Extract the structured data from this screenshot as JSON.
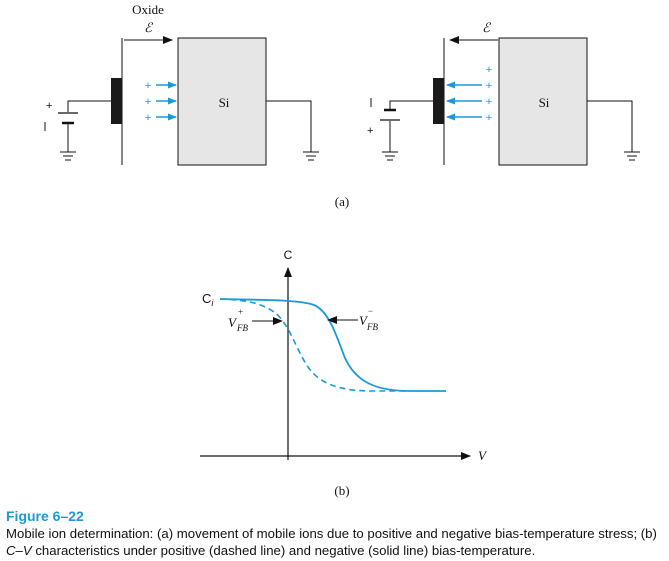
{
  "figure": {
    "title": "Figure 6–22",
    "caption_prefix": "Mobile ion determination: (a) movement of mobile ions due to positive and negative bias-temperature stress; (b) ",
    "caption_italic": "C–V",
    "caption_suffix": " characteristics under positive (dashed line) and negative (solid line) bias-temperature."
  },
  "panel_a": {
    "label": "(a)",
    "oxide_label": "Oxide",
    "field_symbol": "ℰ",
    "si_label": "Si",
    "ion_sign": "+",
    "battery_sign": "+"
  },
  "panel_b": {
    "label": "(b)",
    "y_axis_label": "C",
    "x_axis_label": "V",
    "ci_label": "C",
    "ci_sub": "i",
    "vfb_plus_main": "V",
    "vfb_plus_sup": "+",
    "vfb_plus_sub": "FB",
    "vfb_minus_main": "V",
    "vfb_minus_sup": "−",
    "vfb_minus_sub": "FB"
  },
  "colors": {
    "accent": "#1a9ad6",
    "oxide": "#000000",
    "silicon": "#e6e6e6"
  }
}
